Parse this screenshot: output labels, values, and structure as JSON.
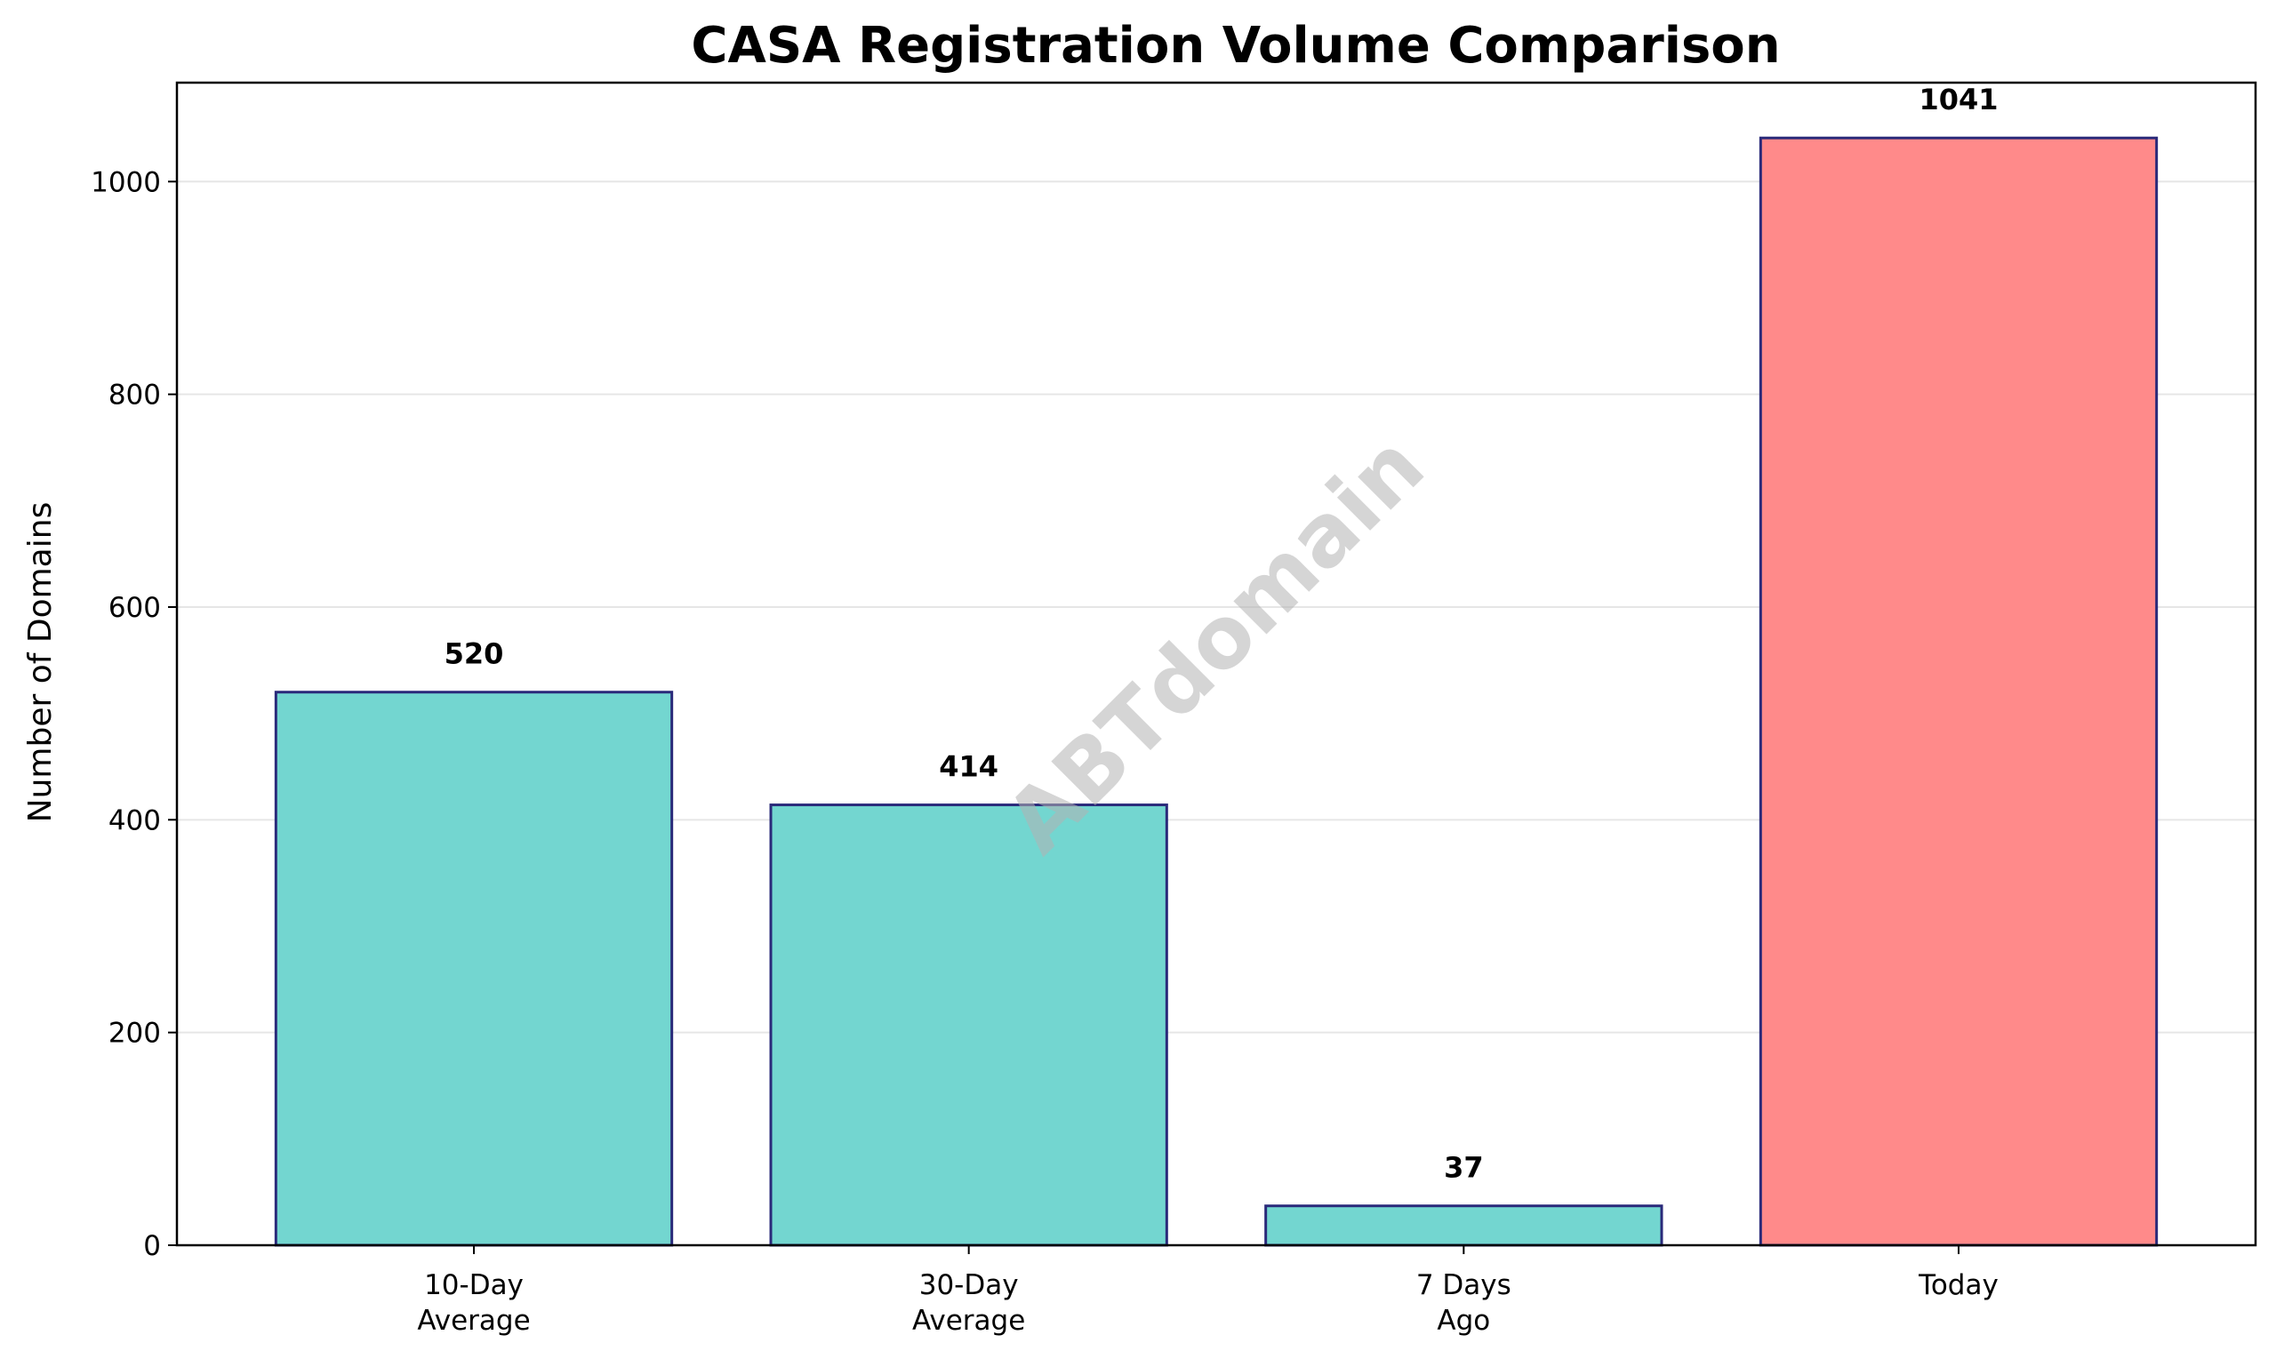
{
  "chart_data": {
    "type": "bar",
    "title": "CASA Registration Volume Comparison",
    "xlabel": "",
    "ylabel": "Number of Domains",
    "categories": [
      [
        "10-Day",
        "Average"
      ],
      [
        "30-Day",
        "Average"
      ],
      [
        "7 Days",
        "Ago"
      ],
      [
        "Today"
      ]
    ],
    "values": [
      520,
      414,
      37,
      1041
    ],
    "value_labels": [
      "520",
      "414",
      "37",
      "1041"
    ],
    "bar_colors": [
      "#73d6d0",
      "#73d6d0",
      "#73d6d0",
      "#ff8a8a"
    ],
    "bar_edge_color": "#2a2a7a",
    "ylim": [
      0,
      1093
    ],
    "yticks": [
      0,
      200,
      400,
      600,
      800,
      1000
    ],
    "grid": "horizontal",
    "legend": "none"
  },
  "watermark": "ABTdomain"
}
